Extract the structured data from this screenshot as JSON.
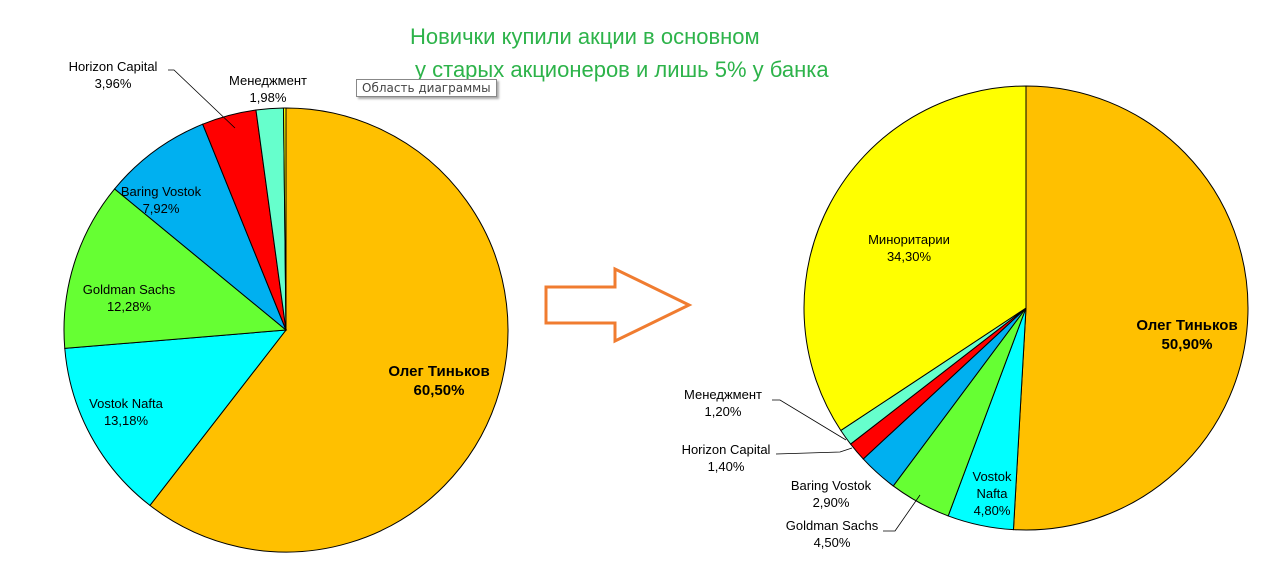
{
  "title_line1": "Новички купили акции в основном",
  "title_line2": "у старых акционеров и лишь 5% у банка",
  "tooltip": "Область диаграммы",
  "arrow_color": "#f07c30",
  "chart_data": [
    {
      "type": "pie",
      "start": "top",
      "direction": "clockwise",
      "slices": [
        {
          "label": "Олег Тиньков",
          "value": 60.5,
          "text": "60,50%",
          "color": "#ffc000"
        },
        {
          "label": "Vostok Nafta",
          "value": 13.18,
          "text": "13,18%",
          "color": "#00ffff"
        },
        {
          "label": "Goldman Sachs",
          "value": 12.28,
          "text": "12,28%",
          "color": "#66ff33"
        },
        {
          "label": "Baring Vostok",
          "value": 7.92,
          "text": "7,92%",
          "color": "#00b0f0"
        },
        {
          "label": "Horizon Capital",
          "value": 3.96,
          "text": "3,96%",
          "color": "#ff0000"
        },
        {
          "label": "Менеджмент",
          "value": 1.98,
          "text": "1,98%",
          "color": "#66ffcc"
        },
        {
          "label": "",
          "value": 0.18,
          "text": "",
          "color": "#ffff00"
        }
      ]
    },
    {
      "type": "pie",
      "start": "top",
      "direction": "clockwise",
      "slices": [
        {
          "label": "Олег Тиньков",
          "value": 50.9,
          "text": "50,90%",
          "color": "#ffc000"
        },
        {
          "label": "Vostok Nafta",
          "value": 4.8,
          "text": "4,80%",
          "color": "#00ffff"
        },
        {
          "label": "Goldman Sachs",
          "value": 4.5,
          "text": "4,50%",
          "color": "#66ff33"
        },
        {
          "label": "Baring Vostok",
          "value": 2.9,
          "text": "2,90%",
          "color": "#00b0f0"
        },
        {
          "label": "Horizon Capital",
          "value": 1.4,
          "text": "1,40%",
          "color": "#ff0000"
        },
        {
          "label": "Менеджмент",
          "value": 1.2,
          "text": "1,20%",
          "color": "#66ffcc"
        },
        {
          "label": "Миноритарии",
          "value": 34.3,
          "text": "34,30%",
          "color": "#ffff00"
        }
      ]
    }
  ]
}
